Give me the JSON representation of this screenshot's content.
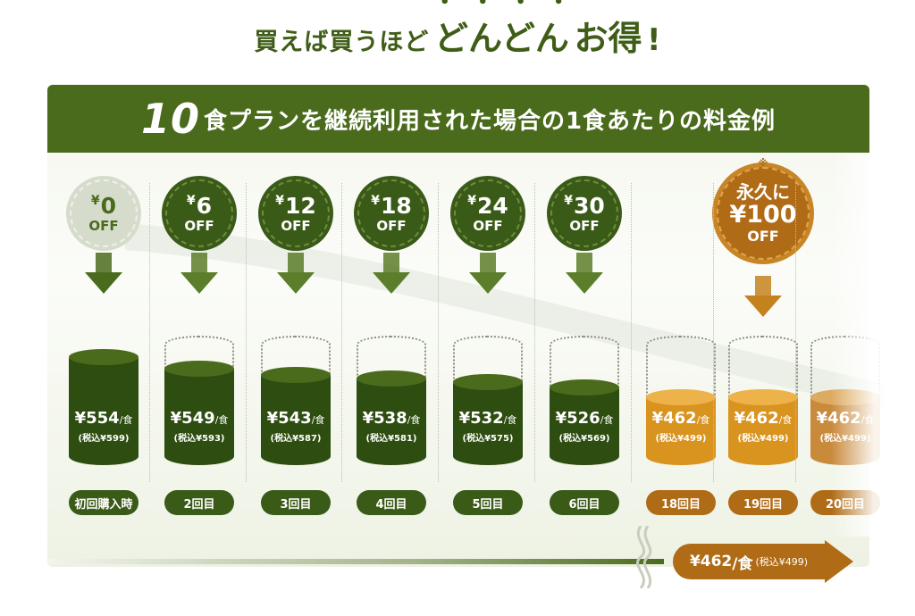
{
  "headline": {
    "part1": "買えば買うほど",
    "emphasis": "どんどん",
    "part2": "お得",
    "mark": "!"
  },
  "banner": {
    "number": "10",
    "text": "食プランを継続利用された場合の1食あたりの料金例"
  },
  "columns": [
    {
      "discount": "0",
      "off": "OFF",
      "price": "¥554",
      "per": "/食",
      "tax": "(税込¥599)",
      "label": "初回購入時",
      "style": "light",
      "fill": 0.92
    },
    {
      "discount": "6",
      "off": "OFF",
      "price": "¥549",
      "per": "/食",
      "tax": "(税込¥593)",
      "label": "2回目",
      "style": "dark",
      "fill": 0.83
    },
    {
      "discount": "12",
      "off": "OFF",
      "price": "¥543",
      "per": "/食",
      "tax": "(税込¥587)",
      "label": "3回目",
      "style": "dark",
      "fill": 0.78
    },
    {
      "discount": "18",
      "off": "OFF",
      "price": "¥538",
      "per": "/食",
      "tax": "(税込¥581)",
      "label": "4回目",
      "style": "dark",
      "fill": 0.75
    },
    {
      "discount": "24",
      "off": "OFF",
      "price": "¥532",
      "per": "/食",
      "tax": "(税込¥575)",
      "label": "5回目",
      "style": "dark",
      "fill": 0.72
    },
    {
      "discount": "30",
      "off": "OFF",
      "price": "¥526",
      "per": "/食",
      "tax": "(税込¥569)",
      "label": "6回目",
      "style": "dark",
      "fill": 0.68
    },
    {
      "price": "¥462",
      "per": "/食",
      "tax": "(税込¥499)",
      "label": "18回目",
      "style": "gold",
      "fill": 0.6
    },
    {
      "discount_prefix": "永久に",
      "discount": "¥100",
      "off": "OFF",
      "note_mark": "※",
      "price": "¥462",
      "per": "/食",
      "tax": "(税込¥499)",
      "label": "19回目",
      "style": "gold",
      "fill": 0.6
    },
    {
      "price": "¥462",
      "per": "/食",
      "tax": "(税込¥499)",
      "label": "20回目",
      "style": "gold-fade",
      "fill": 0.6
    }
  ],
  "bottom": {
    "price": "¥462",
    "per": "/食",
    "tax": "(税込¥499)"
  },
  "colors": {
    "dark_green": "#3a5a17",
    "banner_green": "#4a6b1c",
    "gold": "#b06b16",
    "gold_light": "#d9931f",
    "light_badge": "#d6dccb"
  }
}
